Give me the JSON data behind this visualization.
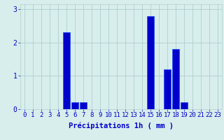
{
  "hours": [
    0,
    1,
    2,
    3,
    4,
    5,
    6,
    7,
    8,
    9,
    10,
    11,
    12,
    13,
    14,
    15,
    16,
    17,
    18,
    19,
    20,
    21,
    22,
    23
  ],
  "values": [
    0,
    0,
    0,
    0,
    0,
    2.3,
    0.2,
    0.2,
    0,
    0,
    0,
    0,
    0,
    0,
    0,
    2.8,
    0,
    1.2,
    1.8,
    0.2,
    0,
    0,
    0,
    0
  ],
  "bar_color": "#0000cc",
  "bar_edge_color": "#0044ff",
  "background_color": "#d8eeed",
  "grid_color": "#b0cece",
  "text_color": "#0000cc",
  "xlabel": "Précipitations 1h ( mm )",
  "ylim": [
    0,
    3.15
  ],
  "yticks": [
    0,
    1,
    2,
    3
  ],
  "tick_fontsize": 6.5,
  "label_fontsize": 7.5
}
